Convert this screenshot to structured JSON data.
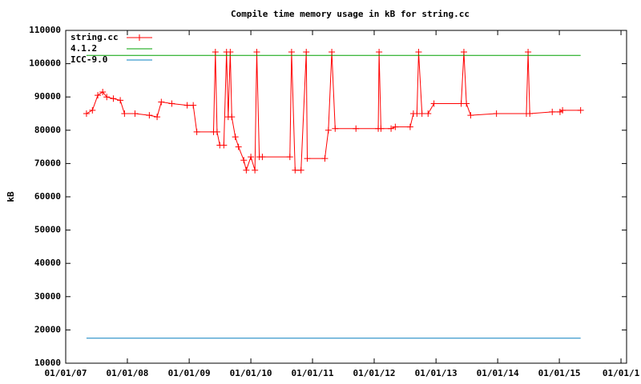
{
  "chart_data": {
    "type": "line",
    "title": "Compile time memory usage in kB for string.cc",
    "y_label": "kB",
    "xlim": [
      "2007-01-01",
      "2016-02-03"
    ],
    "ylim": [
      10000,
      110000
    ],
    "xticks": [
      {
        "value": "2007-01-01",
        "label": "01/01/07"
      },
      {
        "value": "2008-01-01",
        "label": "01/01/08"
      },
      {
        "value": "2009-01-01",
        "label": "01/01/09"
      },
      {
        "value": "2010-01-01",
        "label": "01/01/10"
      },
      {
        "value": "2011-01-01",
        "label": "01/01/11"
      },
      {
        "value": "2012-01-01",
        "label": "01/01/12"
      },
      {
        "value": "2013-01-01",
        "label": "01/01/13"
      },
      {
        "value": "2014-01-01",
        "label": "01/01/14"
      },
      {
        "value": "2015-01-01",
        "label": "01/01/15"
      },
      {
        "value": "2016-01-01",
        "label": "01/01/1"
      }
    ],
    "yticks": [
      10000,
      20000,
      30000,
      40000,
      50000,
      60000,
      70000,
      80000,
      90000,
      100000,
      110000
    ],
    "grid": false,
    "legend": "top-left",
    "series": [
      {
        "name": "string.cc",
        "color": "#ff0000",
        "marker": "+",
        "x": [
          "2007-05-04",
          "2007-06-08",
          "2007-07-10",
          "2007-08-08",
          "2007-09-01",
          "2007-10-10",
          "2007-11-20",
          "2007-12-15",
          "2008-02-15",
          "2008-05-10",
          "2008-06-25",
          "2008-07-20",
          "2008-09-20",
          "2008-12-20",
          "2009-01-25",
          "2009-02-15",
          "2009-05-25",
          "2009-06-05",
          "2009-06-15",
          "2009-07-01",
          "2009-07-25",
          "2009-08-10",
          "2009-08-20",
          "2009-09-01",
          "2009-09-10",
          "2009-10-01",
          "2009-10-20",
          "2009-11-20",
          "2009-12-05",
          "2010-01-01",
          "2010-01-25",
          "2010-02-05",
          "2010-02-20",
          "2010-03-10",
          "2010-08-20",
          "2010-08-30",
          "2010-09-20",
          "2010-10-25",
          "2010-11-25",
          "2010-12-01",
          "2011-03-15",
          "2011-04-05",
          "2011-04-25",
          "2011-05-15",
          "2011-09-15",
          "2012-01-25",
          "2012-01-30",
          "2012-02-10",
          "2012-04-10",
          "2012-05-05",
          "2012-08-01",
          "2012-08-20",
          "2012-09-10",
          "2012-09-20",
          "2012-10-10",
          "2012-11-15",
          "2012-12-20",
          "2013-05-30",
          "2013-06-15",
          "2013-06-30",
          "2013-07-25",
          "2013-12-25",
          "2014-06-20",
          "2014-06-30",
          "2014-07-10",
          "2014-11-20",
          "2015-01-05",
          "2015-01-20",
          "2015-05-07"
        ],
        "values": [
          85000,
          86000,
          90500,
          91500,
          90000,
          89500,
          89000,
          85000,
          85000,
          84500,
          84000,
          88500,
          88000,
          87500,
          87500,
          79500,
          79500,
          103500,
          79500,
          75500,
          75500,
          103500,
          84000,
          103500,
          84000,
          78000,
          75000,
          71000,
          68000,
          72000,
          68000,
          103500,
          72000,
          72000,
          72000,
          103500,
          68000,
          68000,
          103500,
          71500,
          71500,
          80000,
          103500,
          80500,
          80500,
          80500,
          103500,
          80500,
          80500,
          81000,
          81000,
          85000,
          85000,
          103500,
          85000,
          85000,
          88000,
          88000,
          103500,
          88000,
          84500,
          85000,
          85000,
          103500,
          85000,
          85500,
          85500,
          86000,
          86000
        ]
      },
      {
        "name": "4.1.2",
        "color": "#00a000",
        "x": [
          "2007-05-04",
          "2015-05-07"
        ],
        "values": [
          102500,
          102500
        ]
      },
      {
        "name": "ICC-9.0",
        "color": "#0a80c0",
        "x": [
          "2007-05-04",
          "2015-05-07"
        ],
        "values": [
          17500,
          17500
        ]
      }
    ]
  }
}
